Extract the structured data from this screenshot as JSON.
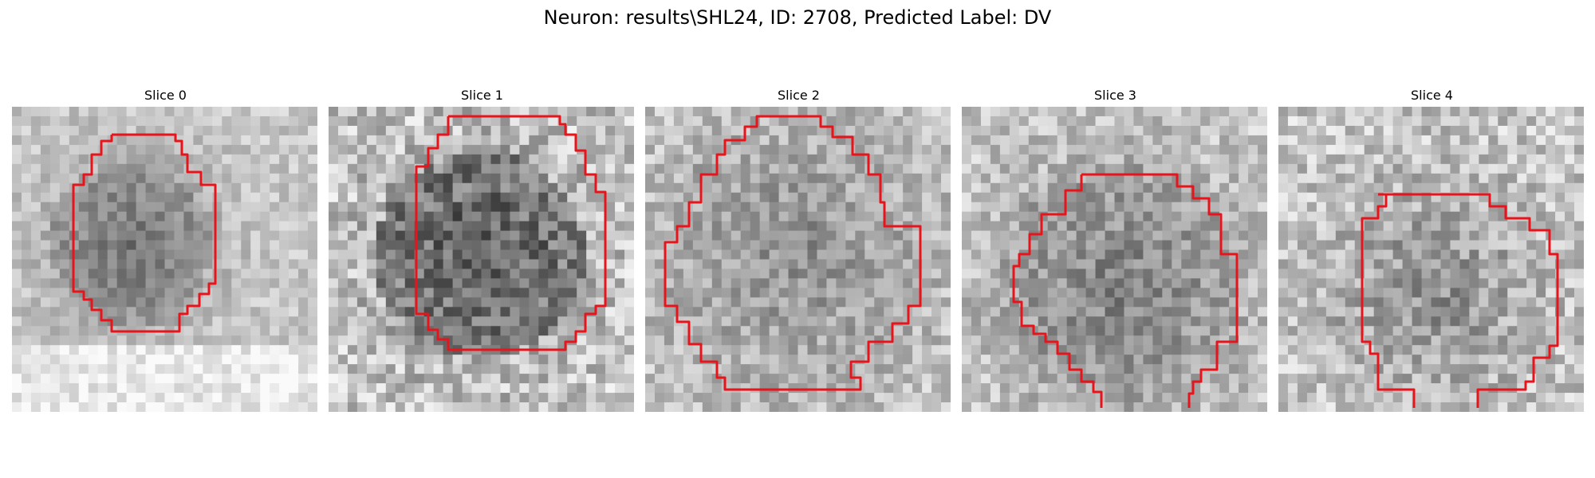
{
  "figure": {
    "title": "Neuron: results\\SHL24, ID: 2708, Predicted Label: DV"
  },
  "panels": [
    {
      "title": "Slice 0"
    },
    {
      "title": "Slice 1"
    },
    {
      "title": "Slice 2"
    },
    {
      "title": "Slice 3"
    },
    {
      "title": "Slice 4"
    }
  ],
  "colors": {
    "contour": "#e8141b",
    "background": "#ffffff"
  }
}
